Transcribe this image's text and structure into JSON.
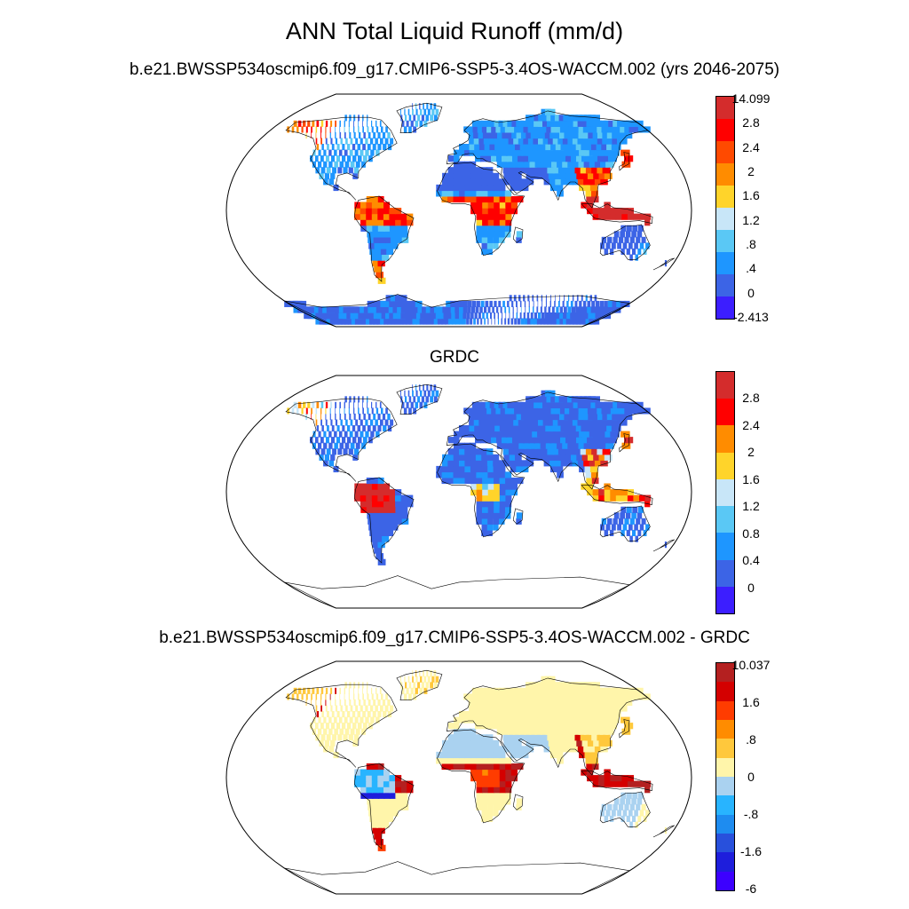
{
  "title": "ANN Total Liquid Runoff (mm/d)",
  "panels": [
    {
      "subtitle": "b.e21.BWSSP534oscmip6.f09_g17.CMIP6-SSP5-3.4OS-WACCM.002 (yrs 2046-2075)",
      "field": "model",
      "colorbar": {
        "colors": [
          "#d42c2c",
          "#ff0000",
          "#ff4a00",
          "#ff8c00",
          "#ffd42a",
          "#c8e6f8",
          "#5ac8f5",
          "#1e96ff",
          "#3c64e6",
          "#3c1eff"
        ],
        "labels": [
          "14.099",
          "2.8",
          "2.4",
          "2",
          "1.6",
          "1.2",
          ".8",
          ".4",
          "0",
          "-2.413"
        ]
      }
    },
    {
      "subtitle": "GRDC",
      "field": "obs",
      "colorbar": {
        "colors": [
          "#d42c2c",
          "#ff0000",
          "#ff8c00",
          "#ffd42a",
          "#c8e6f8",
          "#5ac8f5",
          "#1e96ff",
          "#3c64e6",
          "#3c1eff"
        ],
        "labels": [
          "2.8",
          "2.4",
          "2",
          "1.6",
          "1.2",
          "0.8",
          "0.4",
          "0"
        ]
      }
    },
    {
      "subtitle": "b.e21.BWSSP534oscmip6.f09_g17.CMIP6-SSP5-3.4OS-WACCM.002 - GRDC",
      "field": "diff",
      "colorbar": {
        "colors": [
          "#b42020",
          "#d40000",
          "#ff3c00",
          "#ff8c00",
          "#ffc83c",
          "#fff5aa",
          "#aad2f0",
          "#28b4ff",
          "#1e8cf0",
          "#2850dc",
          "#1e1edc",
          "#3c00ff"
        ],
        "labels": [
          "10.037",
          "1.6",
          ".8",
          "0",
          "-.8",
          "-1.6",
          "-6"
        ]
      }
    }
  ]
}
